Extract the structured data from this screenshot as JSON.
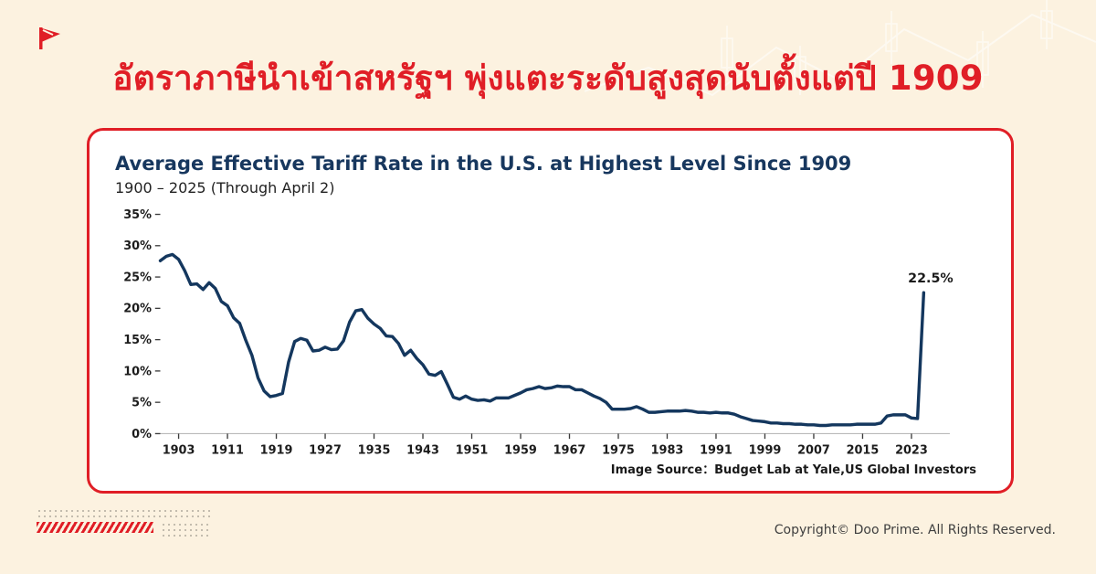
{
  "header": {
    "title": "อัตราภาษีนำเข้าสหรัฐฯ พุ่งแตะระดับสูงสุดนับตั้งแต่ปี 1909"
  },
  "chart": {
    "title": "Average Effective Tariff Rate in the U.S. at Highest Level Since 1909",
    "subtitle": "1900 – 2025 (Through April 2)",
    "source_label": "Image Source：",
    "source_value": "Budget Lab at Yale,US Global Investors"
  },
  "footer": {
    "copyright": "Copyright© Doo Prime. All Rights Reserved."
  },
  "icons": {
    "logo": "doo-prime-flag-logo",
    "background": "faint-candlestick-chart-decoration"
  },
  "colors": {
    "accent_red": "#e01e26",
    "line_navy": "#14375e",
    "card_background": "#ffffff",
    "page_background": "#fcf2e0",
    "axis_gray": "#b9b9b9",
    "tick_dark": "#3a3a3a"
  },
  "chart_data": {
    "type": "line",
    "title": "Average Effective Tariff Rate in the U.S. at Highest Level Since 1909",
    "subtitle": "1900 – 2025 (Through April 2)",
    "xlabel": "",
    "ylabel": "",
    "xlim": [
      1900,
      2027
    ],
    "ylim": [
      0,
      35
    ],
    "grid": false,
    "legend": false,
    "yticks": [
      0,
      5,
      10,
      15,
      20,
      25,
      30,
      35
    ],
    "ytick_suffix": "%",
    "xticks": [
      1903,
      1911,
      1919,
      1927,
      1935,
      1943,
      1951,
      1959,
      1967,
      1975,
      1983,
      1991,
      1999,
      2007,
      2015,
      2023
    ],
    "annotation": {
      "x": 2025,
      "y": 22.5,
      "label": "22.5%"
    },
    "series": [
      {
        "name": "Average effective tariff rate",
        "points": [
          [
            1900,
            27.6
          ],
          [
            1901,
            28.3
          ],
          [
            1902,
            28.6
          ],
          [
            1903,
            27.8
          ],
          [
            1904,
            26.0
          ],
          [
            1905,
            23.8
          ],
          [
            1906,
            23.9
          ],
          [
            1907,
            23.0
          ],
          [
            1908,
            24.1
          ],
          [
            1909,
            23.2
          ],
          [
            1910,
            21.1
          ],
          [
            1911,
            20.4
          ],
          [
            1912,
            18.5
          ],
          [
            1913,
            17.6
          ],
          [
            1914,
            14.9
          ],
          [
            1915,
            12.5
          ],
          [
            1916,
            8.9
          ],
          [
            1917,
            6.8
          ],
          [
            1918,
            5.9
          ],
          [
            1919,
            6.1
          ],
          [
            1920,
            6.4
          ],
          [
            1921,
            11.4
          ],
          [
            1922,
            14.7
          ],
          [
            1923,
            15.2
          ],
          [
            1924,
            14.9
          ],
          [
            1925,
            13.2
          ],
          [
            1926,
            13.3
          ],
          [
            1927,
            13.8
          ],
          [
            1928,
            13.4
          ],
          [
            1929,
            13.5
          ],
          [
            1930,
            14.8
          ],
          [
            1931,
            17.8
          ],
          [
            1932,
            19.6
          ],
          [
            1933,
            19.8
          ],
          [
            1934,
            18.4
          ],
          [
            1935,
            17.5
          ],
          [
            1936,
            16.8
          ],
          [
            1937,
            15.6
          ],
          [
            1938,
            15.5
          ],
          [
            1939,
            14.4
          ],
          [
            1940,
            12.5
          ],
          [
            1941,
            13.3
          ],
          [
            1942,
            12.0
          ],
          [
            1943,
            11.0
          ],
          [
            1944,
            9.5
          ],
          [
            1945,
            9.3
          ],
          [
            1946,
            9.9
          ],
          [
            1947,
            7.9
          ],
          [
            1948,
            5.8
          ],
          [
            1949,
            5.5
          ],
          [
            1950,
            6.0
          ],
          [
            1951,
            5.5
          ],
          [
            1952,
            5.3
          ],
          [
            1953,
            5.4
          ],
          [
            1954,
            5.2
          ],
          [
            1955,
            5.7
          ],
          [
            1956,
            5.7
          ],
          [
            1957,
            5.7
          ],
          [
            1958,
            6.1
          ],
          [
            1959,
            6.5
          ],
          [
            1960,
            7.0
          ],
          [
            1961,
            7.2
          ],
          [
            1962,
            7.5
          ],
          [
            1963,
            7.2
          ],
          [
            1964,
            7.3
          ],
          [
            1965,
            7.6
          ],
          [
            1966,
            7.5
          ],
          [
            1967,
            7.5
          ],
          [
            1968,
            7.0
          ],
          [
            1969,
            7.0
          ],
          [
            1970,
            6.5
          ],
          [
            1971,
            6.0
          ],
          [
            1972,
            5.6
          ],
          [
            1973,
            5.0
          ],
          [
            1974,
            3.9
          ],
          [
            1975,
            3.9
          ],
          [
            1976,
            3.9
          ],
          [
            1977,
            4.0
          ],
          [
            1978,
            4.3
          ],
          [
            1979,
            3.9
          ],
          [
            1980,
            3.4
          ],
          [
            1981,
            3.4
          ],
          [
            1982,
            3.5
          ],
          [
            1983,
            3.6
          ],
          [
            1984,
            3.6
          ],
          [
            1985,
            3.6
          ],
          [
            1986,
            3.7
          ],
          [
            1987,
            3.6
          ],
          [
            1988,
            3.4
          ],
          [
            1989,
            3.4
          ],
          [
            1990,
            3.3
          ],
          [
            1991,
            3.4
          ],
          [
            1992,
            3.3
          ],
          [
            1993,
            3.3
          ],
          [
            1994,
            3.1
          ],
          [
            1995,
            2.7
          ],
          [
            1996,
            2.4
          ],
          [
            1997,
            2.1
          ],
          [
            1998,
            2.0
          ],
          [
            1999,
            1.9
          ],
          [
            2000,
            1.7
          ],
          [
            2001,
            1.7
          ],
          [
            2002,
            1.6
          ],
          [
            2003,
            1.6
          ],
          [
            2004,
            1.5
          ],
          [
            2005,
            1.5
          ],
          [
            2006,
            1.4
          ],
          [
            2007,
            1.4
          ],
          [
            2008,
            1.3
          ],
          [
            2009,
            1.3
          ],
          [
            2010,
            1.4
          ],
          [
            2011,
            1.4
          ],
          [
            2012,
            1.4
          ],
          [
            2013,
            1.4
          ],
          [
            2014,
            1.5
          ],
          [
            2015,
            1.5
          ],
          [
            2016,
            1.5
          ],
          [
            2017,
            1.5
          ],
          [
            2018,
            1.7
          ],
          [
            2019,
            2.8
          ],
          [
            2020,
            3.0
          ],
          [
            2021,
            3.0
          ],
          [
            2022,
            3.0
          ],
          [
            2023,
            2.5
          ],
          [
            2024,
            2.4
          ],
          [
            2025,
            22.5
          ]
        ]
      }
    ]
  }
}
